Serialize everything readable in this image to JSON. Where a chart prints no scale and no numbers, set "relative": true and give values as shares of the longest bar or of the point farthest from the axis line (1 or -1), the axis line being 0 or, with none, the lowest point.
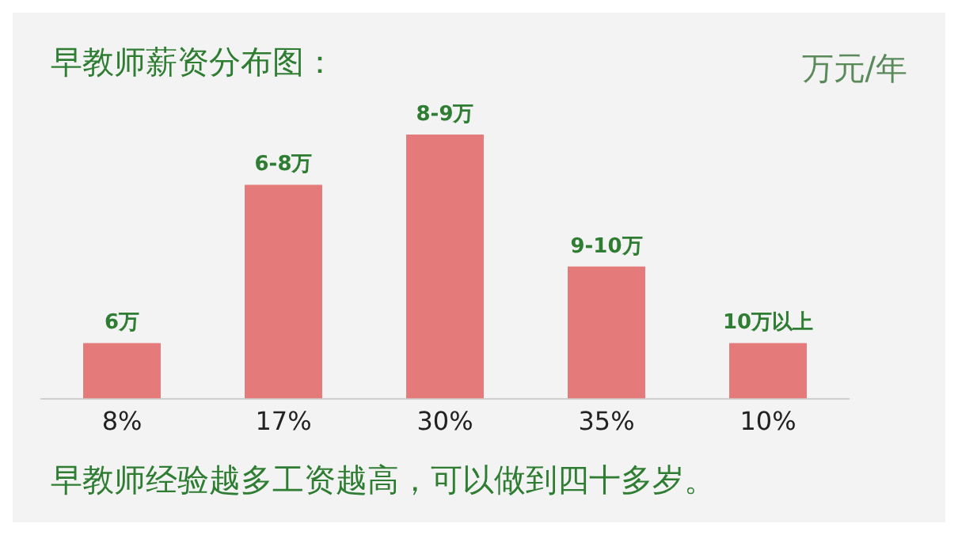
{
  "chart_data": {
    "type": "bar",
    "title": "早教师薪资分布图：",
    "relative": true,
    "categories": [
      "8%",
      "17%",
      "30%",
      "35%",
      "10%"
    ],
    "values": [
      0.21,
      0.81,
      1,
      0.5,
      0.21
    ],
    "color": "#e47a7a",
    "grid": false,
    "legend": false,
    "annotations": [
      "万元/年",
      "早教师经验越多工资越高，可以做到四十多岁。",
      {
        "text": "6万",
        "x": "8%",
        "y": 0.21
      },
      {
        "text": "6-8万",
        "x": "17%",
        "y": 0.81
      },
      {
        "text": "8-9万",
        "x": "30%",
        "y": 1
      },
      {
        "text": "9-10万",
        "x": "35%",
        "y": 0.5
      },
      {
        "text": "10万以上",
        "x": "10%",
        "y": 0.21
      }
    ]
  }
}
